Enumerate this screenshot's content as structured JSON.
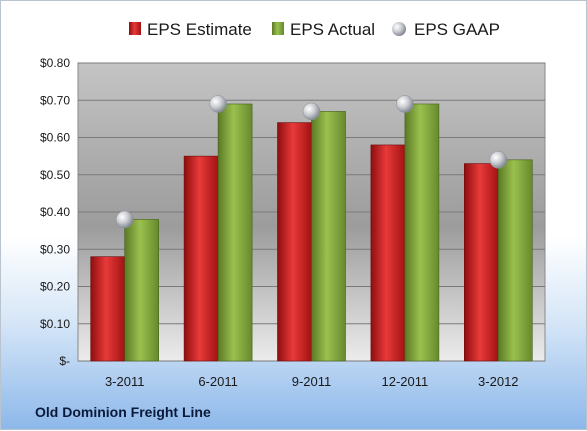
{
  "chart_data": {
    "type": "bar",
    "categories": [
      "3-2011",
      "6-2011",
      "9-2011",
      "12-2011",
      "3-2012"
    ],
    "series": [
      {
        "name": "EPS Estimate",
        "values": [
          0.28,
          0.55,
          0.64,
          0.58,
          0.53
        ],
        "color": "#cc1f1f"
      },
      {
        "name": "EPS Actual",
        "values": [
          0.38,
          0.69,
          0.67,
          0.69,
          0.54
        ],
        "color": "#7ea03a"
      },
      {
        "name": "EPS GAAP",
        "values": [
          0.38,
          0.69,
          0.67,
          0.69,
          0.54
        ],
        "color": "#b8bcc2",
        "marker": "sphere"
      }
    ],
    "ylim": [
      0,
      0.8
    ],
    "yticks": [
      0,
      0.1,
      0.2,
      0.3,
      0.4,
      0.5,
      0.6,
      0.7,
      0.8
    ],
    "ytick_labels": [
      "$-",
      "$0.10",
      "$0.20",
      "$0.30",
      "$0.40",
      "$0.50",
      "$0.60",
      "$0.70",
      "$0.80"
    ],
    "legend_position": "top",
    "grid": true,
    "footer": "Old Dominion Freight Line"
  }
}
